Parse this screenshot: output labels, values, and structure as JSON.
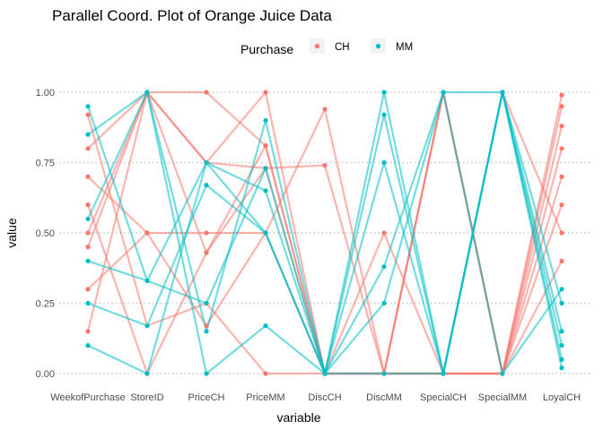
{
  "chart_data": {
    "type": "parallel-coordinates",
    "title": "Parallel Coord. Plot of Orange Juice Data",
    "xlabel": "variable",
    "ylabel": "value",
    "ylim": [
      0,
      1
    ],
    "y_ticks": [
      "0.00",
      "0.25",
      "0.50",
      "0.75",
      "1.00"
    ],
    "y_tick_values": [
      0,
      0.25,
      0.5,
      0.75,
      1
    ],
    "categories": [
      "WeekofPurchase",
      "StoreID",
      "PriceCH",
      "PriceMM",
      "DiscCH",
      "DiscMM",
      "SpecialCH",
      "SpecialMM",
      "LoyalCH"
    ],
    "legend": {
      "title": "Purchase",
      "position": "top",
      "entries": [
        {
          "label": "CH",
          "color": "#F8766D"
        },
        {
          "label": "MM",
          "color": "#00BFC4"
        }
      ]
    },
    "grid": "horizontal dotted",
    "series": [
      {
        "name": "CH",
        "color": "#F8766D",
        "values": [
          0.45,
          1.0,
          0.75,
          0.73,
          0.0,
          0.0,
          1.0,
          0.0,
          0.95
        ]
      },
      {
        "name": "CH",
        "color": "#F8766D",
        "values": [
          0.8,
          1.0,
          0.43,
          0.73,
          0.74,
          0.0,
          0.0,
          0.0,
          0.8
        ]
      },
      {
        "name": "CH",
        "color": "#F8766D",
        "values": [
          0.3,
          0.5,
          0.17,
          0.5,
          0.94,
          0.0,
          1.0,
          0.0,
          0.6
        ]
      },
      {
        "name": "CH",
        "color": "#F8766D",
        "values": [
          0.6,
          0.0,
          0.43,
          0.81,
          0.0,
          0.5,
          0.0,
          0.0,
          0.88
        ]
      },
      {
        "name": "CH",
        "color": "#F8766D",
        "values": [
          0.15,
          1.0,
          1.0,
          0.81,
          0.0,
          0.0,
          0.0,
          0.0,
          0.7
        ]
      },
      {
        "name": "CH",
        "color": "#F8766D",
        "values": [
          0.92,
          0.17,
          0.25,
          0.0,
          0.0,
          0.0,
          1.0,
          0.0,
          0.99
        ]
      },
      {
        "name": "CH",
        "color": "#F8766D",
        "values": [
          0.5,
          1.0,
          0.75,
          1.0,
          0.0,
          0.0,
          0.0,
          1.0,
          0.5
        ]
      },
      {
        "name": "CH",
        "color": "#F8766D",
        "values": [
          0.7,
          0.5,
          0.5,
          0.5,
          0.0,
          0.0,
          0.0,
          0.0,
          0.4
        ]
      },
      {
        "name": "MM",
        "color": "#00BFC4",
        "values": [
          0.25,
          0.17,
          0.67,
          0.5,
          0.0,
          1.0,
          0.0,
          1.0,
          0.1
        ]
      },
      {
        "name": "MM",
        "color": "#00BFC4",
        "values": [
          0.95,
          0.33,
          0.25,
          0.73,
          0.0,
          0.75,
          0.0,
          1.0,
          0.02
        ]
      },
      {
        "name": "MM",
        "color": "#00BFC4",
        "values": [
          0.55,
          1.0,
          0.15,
          0.9,
          0.0,
          0.38,
          1.0,
          1.0,
          0.25
        ]
      },
      {
        "name": "MM",
        "color": "#00BFC4",
        "values": [
          0.1,
          0.0,
          0.75,
          0.5,
          0.0,
          0.0,
          0.0,
          1.0,
          0.05
        ]
      },
      {
        "name": "MM",
        "color": "#00BFC4",
        "values": [
          0.85,
          1.0,
          0.0,
          0.17,
          0.0,
          0.92,
          0.0,
          1.0,
          0.15
        ]
      },
      {
        "name": "MM",
        "color": "#00BFC4",
        "values": [
          0.4,
          0.33,
          0.75,
          0.65,
          0.0,
          0.25,
          1.0,
          0.0,
          0.3
        ]
      }
    ]
  }
}
